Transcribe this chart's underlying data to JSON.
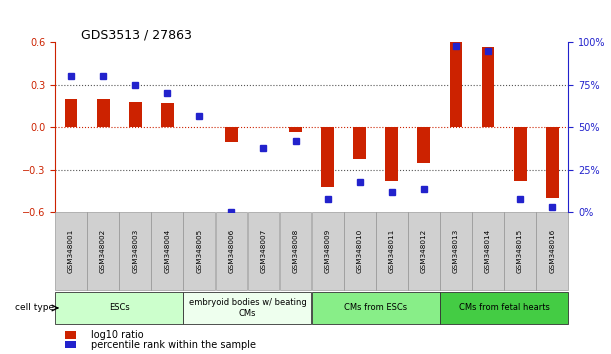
{
  "title": "GDS3513 / 27863",
  "samples": [
    "GSM348001",
    "GSM348002",
    "GSM348003",
    "GSM348004",
    "GSM348005",
    "GSM348006",
    "GSM348007",
    "GSM348008",
    "GSM348009",
    "GSM348010",
    "GSM348011",
    "GSM348012",
    "GSM348013",
    "GSM348014",
    "GSM348015",
    "GSM348016"
  ],
  "log10_ratio": [
    0.2,
    0.2,
    0.18,
    0.17,
    0.0,
    -0.1,
    0.0,
    -0.03,
    -0.42,
    -0.22,
    -0.38,
    -0.25,
    0.6,
    0.57,
    -0.38,
    -0.5
  ],
  "percentile_rank": [
    80,
    80,
    75,
    70,
    57,
    0,
    38,
    42,
    8,
    18,
    12,
    14,
    98,
    95,
    8,
    3
  ],
  "cell_type_groups": [
    {
      "label": "ESCs",
      "start": 0,
      "end": 3,
      "color": "#ccffcc"
    },
    {
      "label": "embryoid bodies w/ beating\nCMs",
      "start": 4,
      "end": 7,
      "color": "#eeffee"
    },
    {
      "label": "CMs from ESCs",
      "start": 8,
      "end": 11,
      "color": "#88ee88"
    },
    {
      "label": "CMs from fetal hearts",
      "start": 12,
      "end": 15,
      "color": "#44cc44"
    }
  ],
  "bar_color_red": "#cc2200",
  "bar_color_blue": "#2222cc",
  "ylim_left": [
    -0.6,
    0.6
  ],
  "ylim_right": [
    0,
    100
  ],
  "yticks_left": [
    -0.6,
    -0.3,
    0.0,
    0.3,
    0.6
  ],
  "yticks_right": [
    0,
    25,
    50,
    75,
    100
  ],
  "legend_red": "log10 ratio",
  "legend_blue": "percentile rank within the sample",
  "bg_color": "#ffffff",
  "sample_box_color": "#d0d0d0",
  "bar_width": 0.4
}
